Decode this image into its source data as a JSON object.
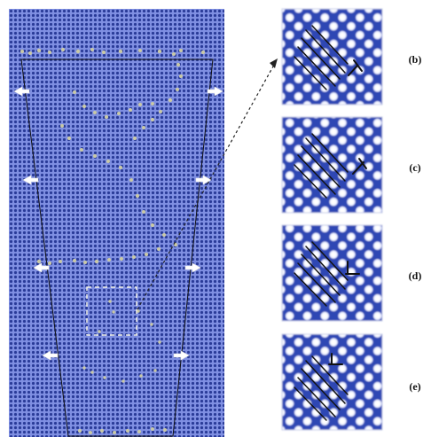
{
  "figure": {
    "panels": [
      {
        "label": "(b)"
      },
      {
        "label": "(c)"
      },
      {
        "label": "(d)"
      },
      {
        "label": "(e)"
      }
    ],
    "colors": {
      "lattice_bg": "#7f8fe2",
      "atom": "#2a3b98",
      "boundary_atom": "#c8c8a6",
      "highlight_box": "#f2f2e4",
      "arrow": "#ffffff",
      "line": "#111111"
    },
    "icons": {
      "load_arrow": "white-arrow-icon",
      "dislocation": "t-symbol-icon"
    }
  }
}
